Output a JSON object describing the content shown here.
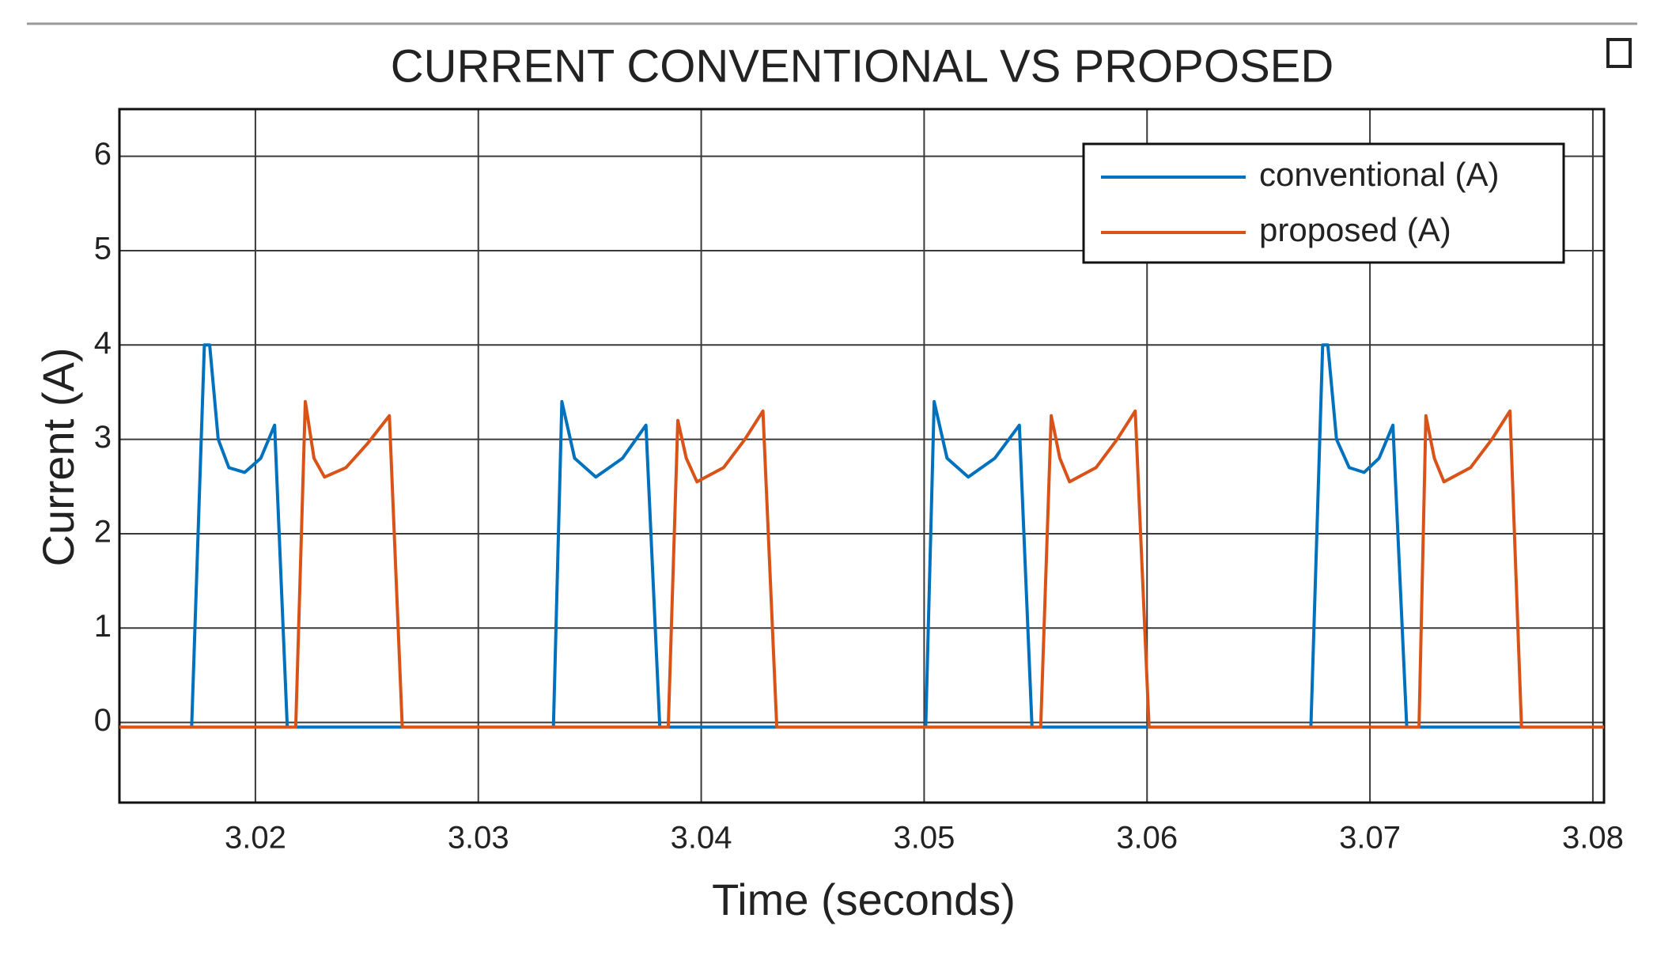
{
  "chart_data": {
    "type": "line",
    "title": "CURRENT CONVENTIONAL VS PROPOSED",
    "x_label": "Time (seconds)",
    "y_label": "Current (A)",
    "xlim": [
      3.0139,
      3.0805
    ],
    "ylim": [
      -0.85,
      6.5
    ],
    "xticks": [
      3.02,
      3.03,
      3.04,
      3.05,
      3.06,
      3.07,
      3.08
    ],
    "yticks": [
      0,
      1,
      2,
      3,
      4,
      5,
      6
    ],
    "grid": true,
    "legend": "upper right",
    "series": [
      {
        "name": "conventional (A)",
        "color": "#0072bd",
        "x": [
          3.0139,
          3.01714,
          3.01771,
          3.01795,
          3.01833,
          3.01881,
          3.01952,
          3.02024,
          3.02086,
          3.02143,
          3.03337,
          3.03375,
          3.03432,
          3.03527,
          3.03647,
          3.03752,
          3.03814,
          3.05007,
          3.05045,
          3.05103,
          3.05198,
          3.05317,
          3.05427,
          3.05484,
          3.06735,
          3.06788,
          3.06811,
          3.0685,
          3.06907,
          3.06974,
          3.07041,
          3.07103,
          3.07165,
          3.0805
        ],
        "values": [
          -0.05,
          -0.05,
          4.0,
          4.0,
          3.0,
          2.7,
          2.65,
          2.8,
          3.15,
          -0.05,
          -0.05,
          3.4,
          2.8,
          2.6,
          2.8,
          3.15,
          -0.05,
          -0.05,
          3.4,
          2.8,
          2.6,
          2.8,
          3.15,
          -0.05,
          -0.05,
          4.0,
          4.0,
          3.0,
          2.7,
          2.65,
          2.8,
          3.15,
          -0.05,
          -0.05
        ]
      },
      {
        "name": "proposed (A)",
        "color": "#d95319",
        "x": [
          3.0139,
          3.02181,
          3.02224,
          3.02263,
          3.0231,
          3.02406,
          3.02501,
          3.02601,
          3.02659,
          3.03852,
          3.03895,
          3.03933,
          3.03981,
          3.041,
          3.04196,
          3.04277,
          3.04339,
          3.05523,
          3.0557,
          3.05609,
          3.05652,
          3.05771,
          3.05866,
          3.05947,
          3.06009,
          3.0722,
          3.07251,
          3.07289,
          3.07332,
          3.07451,
          3.07547,
          3.07628,
          3.0768,
          3.0805
        ],
        "values": [
          -0.05,
          -0.05,
          3.4,
          2.8,
          2.6,
          2.7,
          2.95,
          3.25,
          -0.05,
          -0.05,
          3.2,
          2.8,
          2.55,
          2.7,
          3.0,
          3.3,
          -0.05,
          -0.05,
          3.25,
          2.8,
          2.55,
          2.7,
          3.0,
          3.3,
          -0.05,
          -0.05,
          3.25,
          2.8,
          2.55,
          2.7,
          3.0,
          3.3,
          -0.05,
          -0.05
        ]
      }
    ]
  }
}
